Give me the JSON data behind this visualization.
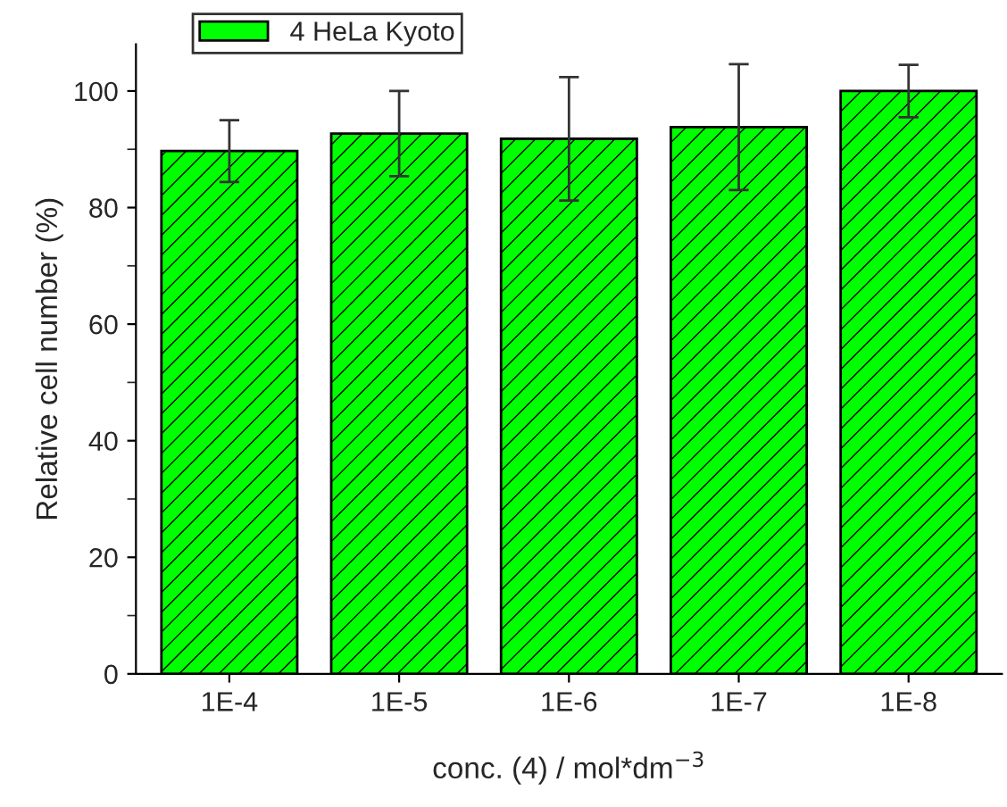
{
  "chart_data": {
    "type": "bar",
    "xlabel": "conc. (4) / mol*dm$^{−3}$",
    "ylabel": "Relative cell number (%)",
    "categories": [
      "1E-4",
      "1E-5",
      "1E-6",
      "1E-7",
      "1E-8"
    ],
    "series": [
      {
        "name": "4 HeLa Kyoto",
        "color": "#00ff00",
        "values": [
          89.7,
          92.7,
          91.8,
          93.8,
          100
        ],
        "errors": [
          5.3,
          7.3,
          10.6,
          10.8,
          4.5
        ]
      }
    ],
    "ylim": [
      0,
      108
    ],
    "yticks": [
      0,
      20,
      40,
      60,
      80,
      100
    ],
    "grid": false,
    "legend": "top left"
  }
}
